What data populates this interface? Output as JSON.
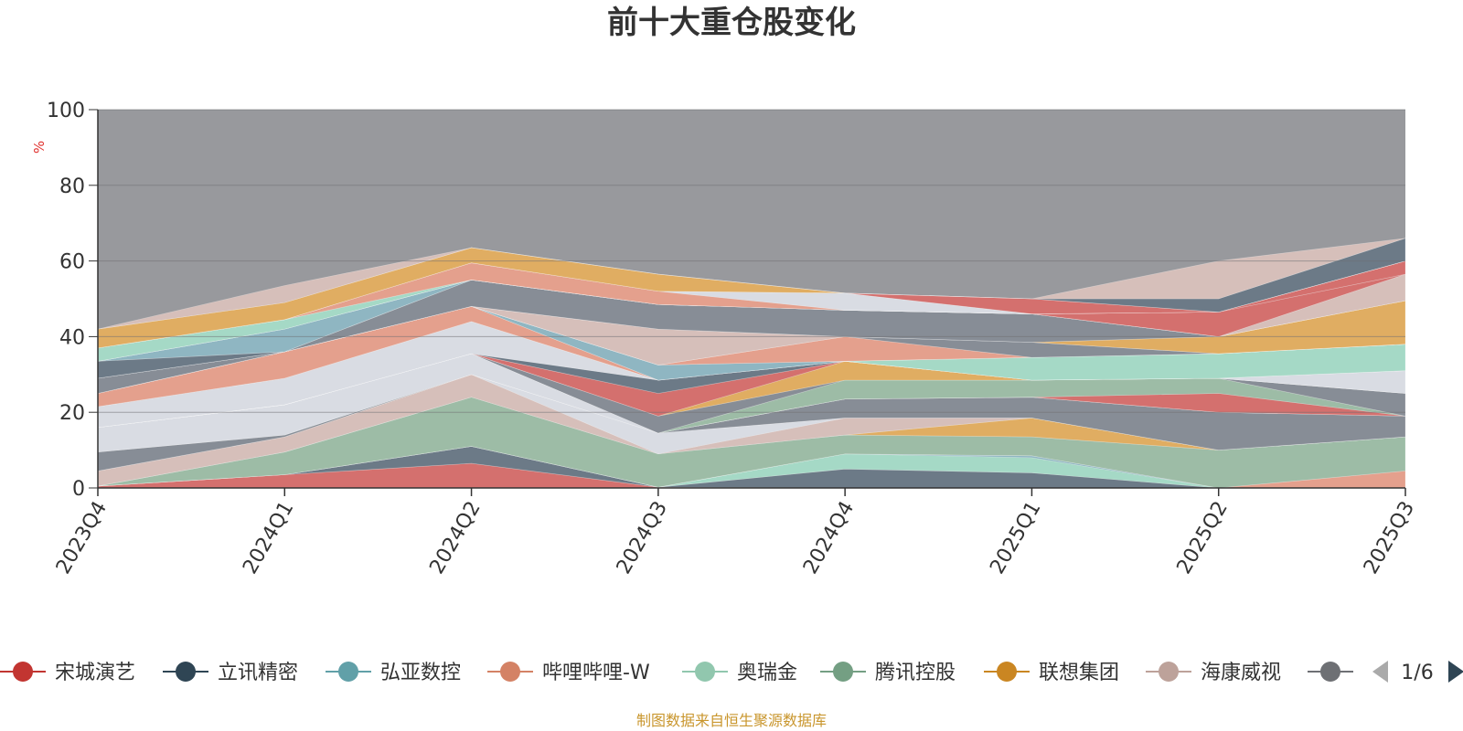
{
  "chart_data": {
    "type": "area",
    "title": "前十大重仓股变化",
    "ylabel": "%",
    "ylim": [
      0,
      100
    ],
    "yticks": [
      0,
      20,
      40,
      60,
      80,
      100
    ],
    "grid": true,
    "legend_position": "bottom",
    "categories": [
      "2023Q4",
      "2024Q1",
      "2024Q2",
      "2024Q3",
      "2024Q4",
      "2025Q1",
      "2025Q2",
      "2025Q3"
    ],
    "background_color": "#98999d",
    "bands": [
      {
        "color": "#d4706e",
        "upper": [
          0.5,
          3.5,
          6.5,
          0.2,
          0,
          0,
          0,
          0
        ]
      },
      {
        "color": "#6c7a87",
        "upper": [
          0.5,
          3.5,
          11,
          0.2,
          5,
          4,
          0,
          0
        ]
      },
      {
        "color": "#a5d9c6",
        "upper": [
          0.5,
          3.5,
          11,
          0.2,
          9,
          8,
          0,
          0
        ]
      },
      {
        "color": "#8fb6c2",
        "upper": [
          0.5,
          3.5,
          11,
          0.2,
          9,
          8.5,
          0,
          0
        ]
      },
      {
        "color": "#e4a08d",
        "upper": [
          0.5,
          3.5,
          11,
          0.2,
          9,
          8.5,
          0,
          4.5
        ]
      },
      {
        "color": "#9dbca6",
        "upper": [
          0.5,
          9.5,
          24,
          9,
          14,
          13.5,
          10,
          13.5
        ]
      },
      {
        "color": "#e0ad62",
        "upper": [
          0.5,
          9.5,
          24,
          9,
          14,
          18.5,
          10,
          13.5
        ]
      },
      {
        "color": "#d6bfba",
        "upper": [
          4.5,
          13.5,
          30,
          9,
          18.5,
          18.5,
          10,
          13.5
        ]
      },
      {
        "color": "#d9dce3",
        "upper": [
          4.5,
          13.5,
          30,
          14.5,
          18.5,
          18.5,
          10,
          13.5
        ]
      },
      {
        "color": "#878d96",
        "upper": [
          9.5,
          14,
          30,
          14.5,
          23.5,
          24,
          20,
          19
        ]
      },
      {
        "color": "#e4a08d",
        "upper": [
          9.5,
          14,
          30,
          14.5,
          23.5,
          24,
          20,
          19
        ]
      },
      {
        "color": "#d9dce3",
        "upper": [
          16,
          22,
          35.5,
          14.5,
          23.5,
          24,
          20,
          19
        ]
      },
      {
        "color": "#d4706e",
        "upper": [
          16,
          22,
          35.5,
          14.5,
          23.5,
          24,
          25,
          19
        ]
      },
      {
        "color": "#9dbca6",
        "upper": [
          16,
          22,
          35.5,
          14.5,
          28.5,
          28.5,
          29,
          19
        ]
      },
      {
        "color": "#878d96",
        "upper": [
          16,
          22,
          35.5,
          19,
          28.5,
          28.5,
          29,
          25
        ]
      },
      {
        "color": "#e0ad62",
        "upper": [
          16,
          22,
          35.5,
          19,
          33.5,
          28.5,
          29,
          25
        ]
      },
      {
        "color": "#d4706e",
        "upper": [
          16,
          22,
          35.5,
          25,
          33.5,
          28.5,
          29,
          25
        ]
      },
      {
        "color": "#6c7a87",
        "upper": [
          16,
          22,
          35.5,
          28.5,
          33.5,
          28.5,
          29,
          25
        ]
      },
      {
        "color": "#d9dce3",
        "upper": [
          21.5,
          29,
          44,
          28.5,
          33.5,
          28.5,
          29,
          31
        ]
      },
      {
        "color": "#a5d9c6",
        "upper": [
          21.5,
          29,
          44,
          28.5,
          33.5,
          28.5,
          29,
          31
        ]
      },
      {
        "color": "#e4a08d",
        "upper": [
          25,
          36,
          48,
          28.5,
          33.5,
          28.5,
          29,
          31
        ]
      },
      {
        "color": "#a5d9c6",
        "upper": [
          25,
          36,
          48,
          28.5,
          33.5,
          34.5,
          35.5,
          38
        ]
      },
      {
        "color": "#8fb6c2",
        "upper": [
          25,
          36,
          48,
          32.5,
          33.5,
          34.5,
          35.5,
          38
        ]
      },
      {
        "color": "#6c7a87",
        "upper": [
          25,
          36,
          48,
          32.5,
          33.5,
          34.5,
          35.5,
          38
        ]
      },
      {
        "color": "#e4a08d",
        "upper": [
          25,
          36,
          48,
          32.5,
          40,
          34.5,
          35.5,
          38
        ]
      },
      {
        "color": "#878d96",
        "upper": [
          29,
          36,
          48,
          32.5,
          40,
          38.5,
          35.5,
          38
        ]
      },
      {
        "color": "#d6bfba",
        "upper": [
          29,
          36,
          48,
          42,
          40,
          38.5,
          35.5,
          38
        ]
      },
      {
        "color": "#e0ad62",
        "upper": [
          29,
          36,
          48,
          42,
          40,
          38.5,
          40,
          49.5
        ]
      },
      {
        "color": "#878d96",
        "upper": [
          29,
          36,
          55,
          48.5,
          47,
          46,
          40,
          49.5
        ]
      },
      {
        "color": "#6c7a87",
        "upper": [
          33.5,
          36,
          55,
          48.5,
          47,
          46,
          40,
          49.5
        ]
      },
      {
        "color": "#8fb6c2",
        "upper": [
          33.5,
          42,
          55,
          48.5,
          47,
          46,
          40,
          49.5
        ]
      },
      {
        "color": "#d6bfba",
        "upper": [
          33.5,
          42,
          55,
          48.5,
          47,
          46,
          40,
          56.5
        ]
      },
      {
        "color": "#d4706e",
        "upper": [
          33.5,
          42,
          55,
          48.5,
          47,
          46,
          46.5,
          56.5
        ]
      },
      {
        "color": "#d4706e",
        "upper": [
          33.5,
          42,
          55,
          48.5,
          47,
          46,
          46.5,
          60
        ]
      },
      {
        "color": "#a5d9c6",
        "upper": [
          37,
          44.5,
          55,
          48.5,
          47,
          46,
          46.5,
          60
        ]
      },
      {
        "color": "#e4a08d",
        "upper": [
          37,
          44.5,
          59.5,
          52,
          47,
          46,
          46.5,
          60
        ]
      },
      {
        "color": "#d9dce3",
        "upper": [
          37,
          44.5,
          59.5,
          52,
          51.5,
          46,
          46.5,
          60
        ]
      },
      {
        "color": "#d4706e",
        "upper": [
          37,
          44.5,
          59.5,
          52,
          51.5,
          50,
          46.5,
          60
        ]
      },
      {
        "color": "#e0ad62",
        "upper": [
          42,
          49,
          63.5,
          56.5,
          51.5,
          50,
          46.5,
          60
        ]
      },
      {
        "color": "#6c7a87",
        "upper": [
          42,
          49,
          63.5,
          56.5,
          51.5,
          50,
          50,
          66
        ]
      },
      {
        "color": "#d6bfba",
        "upper": [
          42,
          53.5,
          63.5,
          56.5,
          51.5,
          50,
          60,
          66
        ]
      }
    ],
    "legend": [
      {
        "name": "宋城演艺",
        "color": "#c23531"
      },
      {
        "name": "立讯精密",
        "color": "#2f4554"
      },
      {
        "name": "弘亚数控",
        "color": "#61a0a8"
      },
      {
        "name": "哔哩哔哩-W",
        "color": "#d48265"
      },
      {
        "name": "奥瑞金",
        "color": "#91c7ae"
      },
      {
        "name": "腾讯控股",
        "color": "#749f83"
      },
      {
        "name": "联想集团",
        "color": "#ca8622"
      },
      {
        "name": "海康威视",
        "color": "#bda29a"
      },
      {
        "name": "",
        "color": "#6e7074"
      }
    ],
    "legend_page": "1/6",
    "source_note": "制图数据来自恒生聚源数据库"
  }
}
